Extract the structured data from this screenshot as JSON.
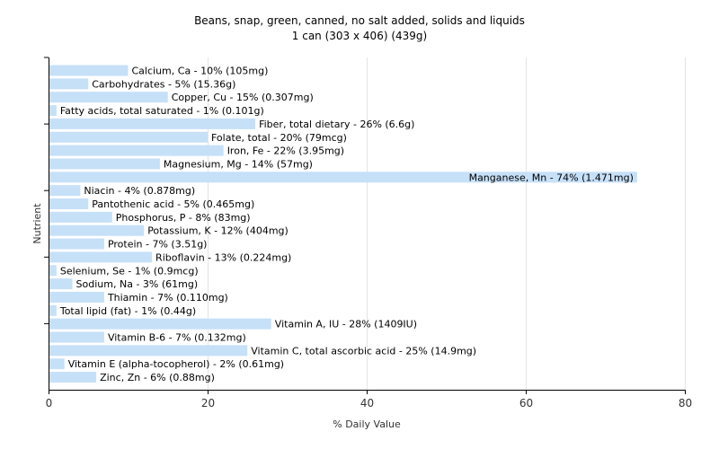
{
  "chart_data": {
    "type": "bar",
    "orientation": "horizontal",
    "title": "Beans, snap, green, canned, no salt added, solids and liquids",
    "subtitle": "1 can (303 x 406) (439g)",
    "xlabel": "% Daily Value",
    "ylabel": "Nutrient",
    "xlim": [
      0,
      80
    ],
    "xticks": [
      0,
      20,
      40,
      60,
      80
    ],
    "grid": true,
    "bar_color": "#c6e0f8",
    "categories": [
      "Calcium, Ca - 10% (105mg)",
      "Carbohydrates - 5% (15.36g)",
      "Copper, Cu - 15% (0.307mg)",
      "Fatty acids, total saturated - 1% (0.101g)",
      "Fiber, total dietary - 26% (6.6g)",
      "Folate, total - 20% (79mcg)",
      "Iron, Fe - 22% (3.95mg)",
      "Magnesium, Mg - 14% (57mg)",
      "Manganese, Mn - 74% (1.471mg)",
      "Niacin - 4% (0.878mg)",
      "Pantothenic acid - 5% (0.465mg)",
      "Phosphorus, P - 8% (83mg)",
      "Potassium, K - 12% (404mg)",
      "Protein - 7% (3.51g)",
      "Riboflavin - 13% (0.224mg)",
      "Selenium, Se - 1% (0.9mcg)",
      "Sodium, Na - 3% (61mg)",
      "Thiamin - 7% (0.110mg)",
      "Total lipid (fat) - 1% (0.44g)",
      "Vitamin A, IU - 28% (1409IU)",
      "Vitamin B-6 - 7% (0.132mg)",
      "Vitamin C, total ascorbic acid - 25% (14.9mg)",
      "Vitamin E (alpha-tocopherol) - 2% (0.61mg)",
      "Zinc, Zn - 6% (0.88mg)"
    ],
    "values": [
      10,
      5,
      15,
      1,
      26,
      20,
      22,
      14,
      74,
      4,
      5,
      8,
      12,
      7,
      13,
      1,
      3,
      7,
      1,
      28,
      7,
      25,
      2,
      6
    ]
  }
}
